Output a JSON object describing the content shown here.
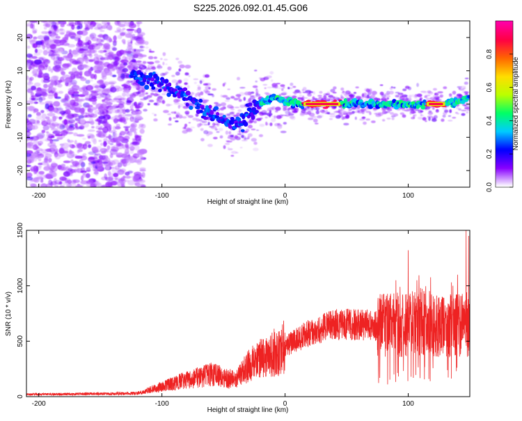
{
  "figure_title": "S225.2026.092.01.45.G06",
  "chart_data": [
    {
      "type": "heatmap",
      "title": "S225.2026.092.01.45.G06",
      "xlabel": "Height of straight line (km)",
      "ylabel": "Frequency (Hz)",
      "xlim": [
        -210,
        150
      ],
      "ylim": [
        -25,
        25
      ],
      "xticks": [
        -200,
        -100,
        0,
        100
      ],
      "yticks": [
        -20,
        -10,
        0,
        10,
        20
      ],
      "colorbar": {
        "label": "Normalized spectral amplitude",
        "range": [
          0,
          1
        ],
        "ticks": [
          "0.0",
          "0.2",
          "0.4",
          "0.6",
          "0.8"
        ],
        "colors": [
          "#ffffff",
          "#8800ff",
          "#0000ff",
          "#00ccff",
          "#00ff66",
          "#bbff00",
          "#ffdd00",
          "#ff6600",
          "#ff0044",
          "#ff00aa"
        ]
      },
      "ridge": {
        "description_points_x": [
          -120,
          -100,
          -80,
          -60,
          -45,
          -35,
          -20,
          -10,
          0,
          10,
          20,
          60,
          100,
          120,
          135,
          150
        ],
        "description_points_y": [
          9,
          6,
          2,
          -3,
          -6,
          -5,
          0,
          2,
          1,
          0,
          0,
          0,
          0,
          0,
          0,
          2
        ],
        "peak_segments_x": [
          [
            15,
            45
          ],
          [
            115,
            130
          ]
        ]
      }
    },
    {
      "type": "line",
      "xlabel": "Height of straight line (km)",
      "ylabel": "SNR (10 * v/v)",
      "xlim": [
        -210,
        150
      ],
      "ylim": [
        0,
        1500
      ],
      "xticks": [
        -200,
        -100,
        0,
        100
      ],
      "yticks": [
        0,
        500,
        1000,
        1500
      ],
      "color": "#ee2222",
      "envelope_x": [
        -210,
        -120,
        -100,
        -80,
        -60,
        -40,
        -30,
        -20,
        0,
        20,
        40,
        60,
        80,
        90,
        100,
        110,
        120,
        130,
        140,
        150
      ],
      "envelope_y": [
        20,
        30,
        90,
        150,
        200,
        150,
        280,
        330,
        450,
        580,
        650,
        650,
        640,
        650,
        650,
        680,
        650,
        640,
        650,
        650
      ],
      "spikes_x": [
        -30,
        -20,
        -5,
        85,
        90,
        95,
        100,
        107,
        110,
        118,
        140,
        147,
        149
      ],
      "spikes_y": [
        390,
        520,
        480,
        890,
        1050,
        800,
        1320,
        1050,
        980,
        820,
        1100,
        1500,
        1450
      ]
    }
  ]
}
